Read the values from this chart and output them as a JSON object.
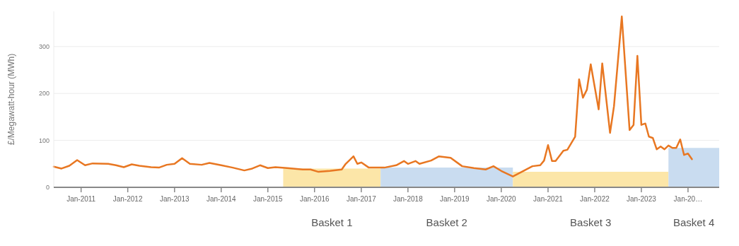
{
  "chart_data": {
    "type": "line",
    "ylabel": "£/Megawatt-hour (MWh)",
    "xlim": [
      "2010-06",
      "2024-09"
    ],
    "ylim": [
      0,
      375
    ],
    "yticks": [
      0,
      100,
      200,
      300
    ],
    "xticks": [
      {
        "value": "2011-01",
        "label": "Jan-2011"
      },
      {
        "value": "2012-01",
        "label": "Jan-2012"
      },
      {
        "value": "2013-01",
        "label": "Jan-2013"
      },
      {
        "value": "2014-01",
        "label": "Jan-2014"
      },
      {
        "value": "2015-01",
        "label": "Jan-2015"
      },
      {
        "value": "2016-01",
        "label": "Jan-2016"
      },
      {
        "value": "2017-01",
        "label": "Jan-2017"
      },
      {
        "value": "2018-01",
        "label": "Jan-2018"
      },
      {
        "value": "2019-01",
        "label": "Jan-2019"
      },
      {
        "value": "2020-01",
        "label": "Jan-2020"
      },
      {
        "value": "2021-01",
        "label": "Jan-2021"
      },
      {
        "value": "2022-01",
        "label": "Jan-2022"
      },
      {
        "value": "2023-01",
        "label": "Jan-2023"
      },
      {
        "value": "2024-01",
        "label": "Jan-20…"
      }
    ],
    "grid": "y",
    "marker": "none",
    "line_style": "solid",
    "series": [
      {
        "type": "area",
        "name": "Basket 1",
        "color": "#fce6a8",
        "x": [
          "2015-05",
          "2017-06"
        ],
        "values": [
          40,
          40
        ]
      },
      {
        "type": "area",
        "name": "Basket 2",
        "color": "#c9dcf0",
        "x": [
          "2017-06",
          "2020-04"
        ],
        "values": [
          42,
          42
        ]
      },
      {
        "type": "area",
        "name": "Basket 3",
        "color": "#fce6a8",
        "x": [
          "2020-04",
          "2023-08"
        ],
        "values": [
          33,
          33
        ]
      },
      {
        "type": "area",
        "name": "Basket 4",
        "color": "#c9dcf0",
        "x": [
          "2023-08",
          "2024-09"
        ],
        "values": [
          84,
          84
        ]
      },
      {
        "color": "#e87722",
        "x": [
          "2010-06",
          "2010-08",
          "2010-10",
          "2010-12",
          "2011-02",
          "2011-04",
          "2011-08",
          "2011-10",
          "2011-12",
          "2012-02",
          "2012-04",
          "2012-07",
          "2012-09",
          "2012-11",
          "2013-01",
          "2013-03",
          "2013-05",
          "2013-08",
          "2013-10",
          "2014-01",
          "2014-04",
          "2014-07",
          "2014-09",
          "2014-11",
          "2015-01",
          "2015-03",
          "2015-06",
          "2015-10",
          "2015-12",
          "2016-02",
          "2016-05",
          "2016-08",
          "2016-09",
          "2016-11",
          "2016-12",
          "2017-01",
          "2017-03",
          "2017-07",
          "2017-10",
          "2017-12",
          "2018-01",
          "2018-03",
          "2018-04",
          "2018-07",
          "2018-09",
          "2018-12",
          "2019-03",
          "2019-06",
          "2019-09",
          "2019-11",
          "2020-01",
          "2020-04",
          "2020-09",
          "2020-11",
          "2020-12",
          "2021-01",
          "2021-02",
          "2021-03",
          "2021-05",
          "2021-06",
          "2021-08",
          "2021-09",
          "2021-10",
          "2021-11",
          "2021-12",
          "2022-02",
          "2022-03",
          "2022-05",
          "2022-06",
          "2022-08",
          "2022-10",
          "2022-11",
          "2022-12",
          "2023-01",
          "2023-02",
          "2023-03",
          "2023-04",
          "2023-05",
          "2023-06",
          "2023-07",
          "2023-08",
          "2023-09",
          "2023-10",
          "2023-11",
          "2023-12",
          "2024-01",
          "2024-02"
        ],
        "values": [
          44,
          40,
          46,
          58,
          47,
          51,
          50,
          47,
          43,
          49,
          46,
          43,
          42,
          48,
          50,
          62,
          50,
          48,
          52,
          47,
          42,
          36,
          40,
          47,
          41,
          43,
          41,
          38,
          38,
          33,
          35,
          38,
          50,
          66,
          50,
          53,
          42,
          42,
          47,
          56,
          50,
          56,
          50,
          57,
          66,
          63,
          45,
          41,
          38,
          45,
          35,
          23,
          45,
          47,
          57,
          90,
          56,
          56,
          78,
          80,
          108,
          230,
          191,
          208,
          262,
          166,
          264,
          116,
          173,
          364,
          122,
          133,
          280,
          133,
          136,
          108,
          105,
          81,
          87,
          81,
          89,
          84,
          84,
          102,
          69,
          72,
          60
        ]
      }
    ]
  }
}
